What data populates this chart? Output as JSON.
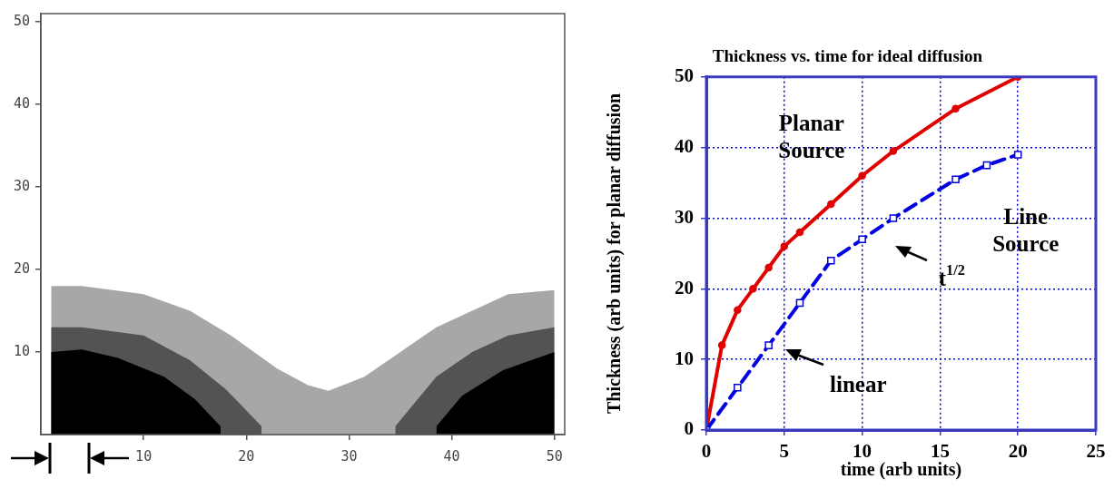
{
  "chart_data": [
    {
      "type": "area",
      "xlim": [
        0,
        51
      ],
      "ylim": [
        0,
        51
      ],
      "xticks": [
        10,
        20,
        30,
        40,
        50
      ],
      "yticks": [
        10,
        20,
        30,
        40,
        50
      ],
      "series": [
        {
          "color": "#a9a6a9",
          "x": [
            1,
            4,
            10,
            14.5,
            18.5,
            23,
            26,
            28,
            31.5,
            35,
            38.5,
            42,
            45.5,
            50
          ],
          "values": [
            18,
            18,
            17,
            15,
            12,
            8,
            6,
            5.3,
            7,
            10,
            13,
            15,
            17,
            17.5
          ]
        },
        {
          "color": "#545254",
          "x": [
            1,
            4,
            10,
            14.5,
            18,
            21.5,
            28,
            34.5,
            38.5,
            42,
            45.5,
            50
          ],
          "values": [
            13,
            13,
            12,
            9,
            5.5,
            1,
            null,
            1,
            7,
            10,
            12,
            13
          ]
        },
        {
          "color": "#000000",
          "x": [
            1,
            4,
            7.5,
            12,
            15,
            17.5,
            28,
            38.5,
            41,
            45,
            50
          ],
          "values": [
            10,
            10.3,
            9.3,
            7,
            4.3,
            1,
            null,
            1,
            4.7,
            7.8,
            10
          ]
        }
      ]
    },
    {
      "type": "line",
      "title": "Thickness vs. time for ideal diffusion",
      "xlabel": "time (arb units)",
      "ylabel": "Thickness (arb units) for planar diffusion",
      "xlim": [
        0,
        25
      ],
      "ylim": [
        0,
        50
      ],
      "xticks": [
        0,
        5,
        10,
        15,
        20,
        25
      ],
      "yticks": [
        0,
        10,
        20,
        30,
        40,
        50
      ],
      "grid": true,
      "series": [
        {
          "name": "Planar Source",
          "color": "#e00000",
          "marker": "circle",
          "line_style": "solid",
          "x": [
            0,
            1,
            2,
            3,
            4,
            5,
            6,
            8,
            10,
            12,
            16,
            20
          ],
          "values": [
            0,
            12,
            17,
            20,
            23,
            26,
            28,
            32,
            36,
            39.5,
            45.5,
            50
          ]
        },
        {
          "name": "Line Source",
          "color": "#0000e0",
          "marker": "square",
          "line_style": "dashed",
          "x": [
            0,
            2,
            4,
            6,
            8,
            10,
            12,
            16,
            18,
            20
          ],
          "values": [
            0,
            6,
            12,
            18,
            24,
            27,
            30,
            35.5,
            37.5,
            39
          ]
        }
      ],
      "annotations": [
        "t$^{1/2}$",
        "linear"
      ]
    }
  ]
}
